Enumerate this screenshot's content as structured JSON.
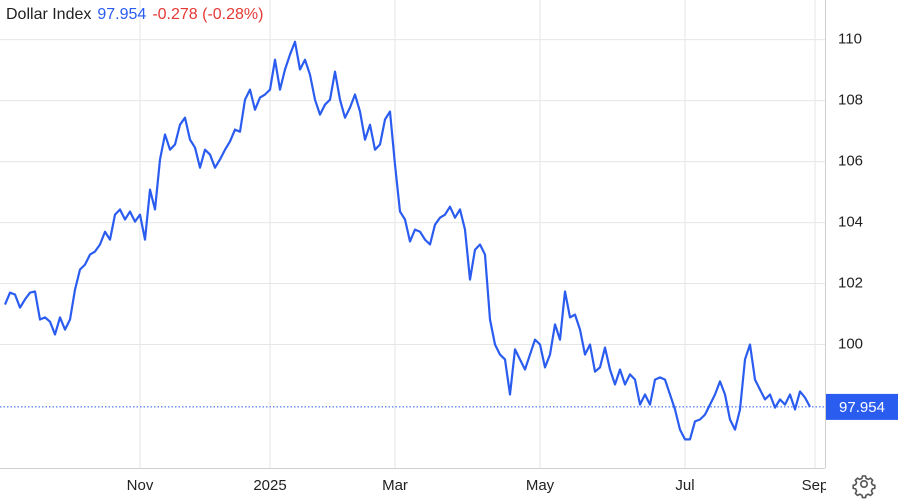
{
  "chart_data": {
    "type": "line",
    "title": "Dollar Index",
    "last_value": 97.954,
    "change": "-0.278 (-0.28%)",
    "categories": [
      null,
      null,
      null,
      null,
      null,
      null,
      null,
      null,
      null,
      null,
      null,
      null,
      null,
      null,
      null,
      null,
      null,
      null,
      null,
      null,
      null,
      null,
      null,
      null,
      null,
      null,
      null,
      "Nov",
      null,
      null,
      null,
      null,
      null,
      null,
      null,
      null,
      null,
      null,
      null,
      null,
      null,
      null,
      null,
      null,
      null,
      null,
      null,
      null,
      null,
      null,
      null,
      null,
      null,
      "2025",
      null,
      null,
      null,
      null,
      null,
      null,
      null,
      null,
      null,
      null,
      null,
      null,
      null,
      null,
      null,
      null,
      null,
      null,
      null,
      null,
      null,
      null,
      null,
      null,
      "Mar",
      null,
      null,
      null,
      null,
      null,
      null,
      null,
      null,
      null,
      null,
      null,
      null,
      null,
      null,
      null,
      null,
      null,
      null,
      null,
      null,
      null,
      null,
      null,
      null,
      null,
      null,
      null,
      null,
      "May",
      null,
      null,
      null,
      null,
      null,
      null,
      null,
      null,
      null,
      null,
      null,
      null,
      null,
      null,
      null,
      null,
      null,
      null,
      null,
      null,
      null,
      null,
      null,
      null,
      null,
      null,
      null,
      null,
      "Jul",
      null,
      null,
      null,
      null,
      null,
      null,
      null,
      null,
      null,
      null,
      null,
      null,
      null,
      null,
      null,
      null,
      null,
      null,
      null,
      null,
      null,
      null,
      null,
      null,
      null,
      "Sep"
    ],
    "values": [
      101.31,
      101.7,
      101.64,
      101.21,
      101.48,
      101.7,
      101.74,
      100.82,
      100.89,
      100.75,
      100.33,
      100.89,
      100.49,
      100.82,
      101.8,
      102.46,
      102.62,
      102.95,
      103.05,
      103.28,
      103.7,
      103.44,
      104.26,
      104.43,
      104.1,
      104.36,
      104.03,
      104.26,
      103.44,
      105.08,
      104.43,
      106.07,
      106.89,
      106.39,
      106.56,
      107.21,
      107.44,
      106.72,
      106.46,
      105.8,
      106.39,
      106.23,
      105.8,
      106.07,
      106.39,
      106.66,
      107.05,
      106.98,
      108.03,
      108.36,
      107.7,
      108.1,
      108.2,
      108.36,
      109.34,
      108.36,
      109.02,
      109.51,
      109.93,
      109.02,
      109.34,
      108.85,
      108.03,
      107.54,
      107.87,
      108.03,
      108.95,
      108.03,
      107.44,
      107.77,
      108.2,
      107.64,
      106.72,
      107.21,
      106.39,
      106.56,
      107.38,
      107.64,
      105.9,
      104.36,
      104.1,
      103.38,
      103.77,
      103.7,
      103.44,
      103.28,
      103.93,
      104.16,
      104.26,
      104.52,
      104.16,
      104.43,
      103.77,
      102.13,
      103.11,
      103.28,
      102.95,
      100.82,
      100.0,
      99.67,
      99.51,
      98.36,
      99.84,
      99.51,
      99.18,
      99.67,
      100.16,
      100.0,
      99.25,
      99.67,
      100.66,
      100.16,
      101.74,
      100.89,
      100.98,
      100.49,
      99.67,
      100.0,
      99.11,
      99.25,
      99.9,
      99.18,
      98.69,
      99.18,
      98.69,
      99.02,
      98.85,
      98.03,
      98.36,
      98.03,
      98.85,
      98.92,
      98.85,
      98.36,
      97.87,
      97.21,
      96.89,
      96.89,
      97.48,
      97.54,
      97.7,
      98.03,
      98.36,
      98.79,
      98.36,
      97.54,
      97.21,
      97.87,
      99.51,
      100.0,
      98.85,
      98.52,
      98.2,
      98.36,
      97.93,
      98.2,
      98.03,
      98.36,
      97.87,
      98.46,
      98.26,
      97.954,
      null
    ],
    "color": "#2b5cf0",
    "ylim": [
      95.95,
      111.3
    ],
    "yticks": [
      100,
      102,
      104,
      106,
      108,
      110
    ],
    "grid": true
  }
}
